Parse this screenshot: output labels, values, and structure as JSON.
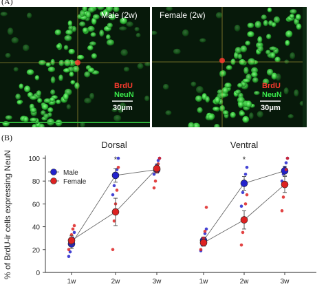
{
  "panel_a": {
    "label": "(A)",
    "images": [
      {
        "title": "Male (2w)",
        "legend": [
          "BrdU",
          "NeuN"
        ],
        "scale": "30μm"
      },
      {
        "title": "Female (2w)",
        "legend": [
          "BrdU",
          "NeuN"
        ],
        "scale": "30μm"
      }
    ],
    "colors": {
      "brdu": "#ff3b2f",
      "neun": "#39e84a",
      "background": "#0a1a0c"
    }
  },
  "panel_b": {
    "label": "(B)",
    "chart_data": {
      "type": "scatter",
      "ylabel": "% of BrdU-ir cells expressing NeuN",
      "ylim": [
        0,
        100
      ],
      "yticks": [
        0,
        20,
        40,
        60,
        80,
        100
      ],
      "legend_position": "top-left",
      "panels": [
        {
          "title": "Dorsal",
          "categories": [
            "1w",
            "2w",
            "3w"
          ],
          "significance": [
            "",
            "*",
            ""
          ],
          "series": [
            {
              "name": "Male",
              "color": "#2222cc",
              "means": [
                25,
                85,
                90
              ],
              "sem": [
                4,
                6,
                3
              ],
              "points": [
                [
                  14,
                  18,
                  24,
                  30,
                  35
                ],
                [
                  68,
                  76,
                  84,
                  90,
                  100
                ],
                [
                  86,
                  90,
                  94,
                  98,
                  100
                ]
              ]
            },
            {
              "name": "Female",
              "color": "#dd2222",
              "means": [
                28,
                53,
                91
              ],
              "sem": [
                4,
                12,
                4
              ],
              "points": [
                [
                  20,
                  26,
                  33,
                  38,
                  41
                ],
                [
                  20,
                  45,
                  60,
                  72,
                  92
                ],
                [
                  74,
                  80,
                  88,
                  95,
                  100
                ]
              ]
            }
          ]
        },
        {
          "title": "Ventral",
          "categories": [
            "1w",
            "2w",
            "3w"
          ],
          "significance": [
            "",
            "*",
            ""
          ],
          "series": [
            {
              "name": "Male",
              "color": "#2222cc",
              "means": [
                28,
                78,
                89
              ],
              "sem": [
                3,
                6,
                4
              ],
              "points": [
                [
                  19,
                  24,
                  30,
                  34,
                  38
                ],
                [
                  58,
                  70,
                  80,
                  86,
                  92
                ],
                [
                  80,
                  86,
                  92,
                  96,
                  100
                ]
              ]
            },
            {
              "name": "Female",
              "color": "#dd2222",
              "means": [
                26,
                46,
                77
              ],
              "sem": [
                3,
                8,
                7
              ],
              "points": [
                [
                  20,
                  25,
                  30,
                  36,
                  57
                ],
                [
                  24,
                  35,
                  48,
                  60,
                  68
                ],
                [
                  54,
                  66,
                  76,
                  90,
                  100
                ]
              ]
            }
          ]
        }
      ]
    }
  }
}
